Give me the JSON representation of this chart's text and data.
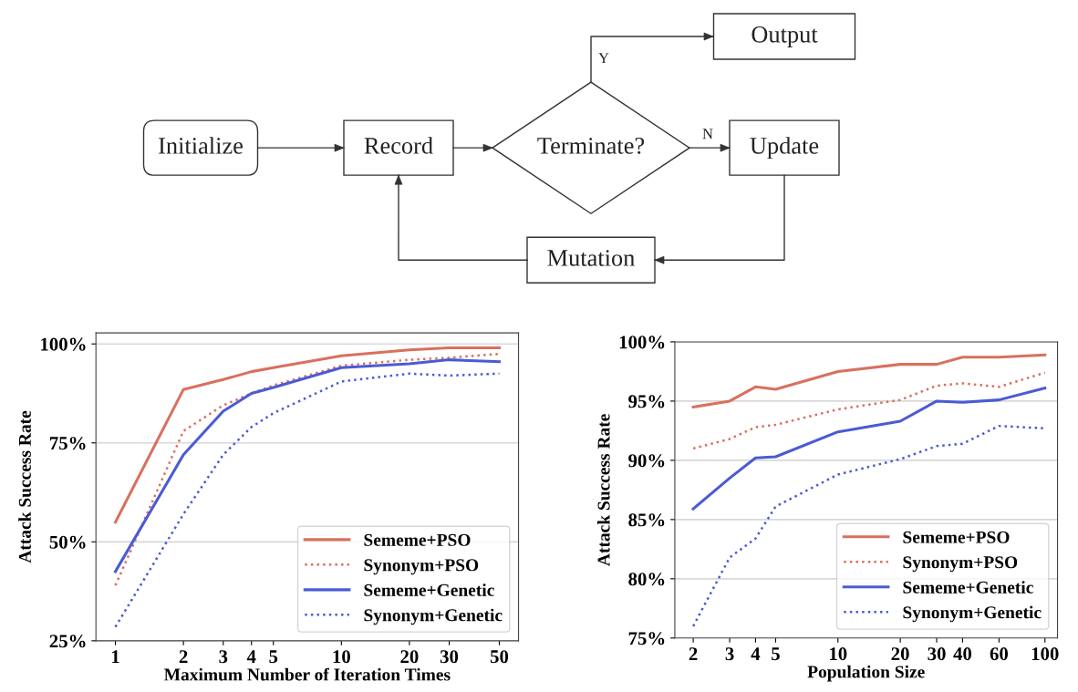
{
  "chart_data": [
    {
      "type": "other",
      "annotations": [
        "Initialize",
        "Record",
        "Terminate?",
        "Update",
        "Output",
        "Mutation",
        "Y",
        "N"
      ]
    },
    {
      "type": "line",
      "xlabel": "Maximum Number of Iteration Times",
      "ylabel": "Attack Success Rate",
      "log": "x",
      "grid": "y",
      "legend": "bottom right",
      "x": [
        1,
        2,
        3,
        4,
        5,
        10,
        20,
        30,
        50
      ],
      "xlim": [
        0.82,
        60.8
      ],
      "xticks": [
        1,
        2,
        3,
        4,
        5,
        10,
        20,
        30,
        50
      ],
      "ylim": [
        25,
        102.8
      ],
      "yticks": [
        {
          "value": 25,
          "label": "25%"
        },
        {
          "value": 50,
          "label": "50%"
        },
        {
          "value": 75,
          "label": "75%"
        },
        {
          "value": 100,
          "label": "100%"
        }
      ],
      "series": [
        {
          "name": "Sememe+PSO",
          "color": "#d9705e",
          "line_style": "solid",
          "values": [
            55,
            88.5,
            91,
            93,
            94,
            97,
            98.5,
            99,
            99
          ]
        },
        {
          "name": "Synonym+PSO",
          "color": "#d9705e",
          "line_style": "dotted",
          "values": [
            39,
            78,
            84.5,
            87.5,
            89.5,
            94.5,
            96,
            96.5,
            97.5
          ]
        },
        {
          "name": "Sememe+Genetic",
          "color": "#4a5bd4",
          "line_style": "solid",
          "values": [
            42.5,
            72,
            83,
            87.5,
            89,
            94,
            95,
            96,
            95.5
          ]
        },
        {
          "name": "Synonym+Genetic",
          "color": "#4a5bd4",
          "line_style": "dotted",
          "values": [
            28.5,
            57,
            72,
            79,
            82.5,
            90.5,
            92.5,
            92,
            92.5
          ]
        }
      ]
    },
    {
      "type": "line",
      "xlabel": "Population Size",
      "ylabel": "Attack Success Rate",
      "log": "x",
      "grid": "y",
      "legend": "bottom right",
      "x": [
        2,
        3,
        4,
        5,
        10,
        20,
        30,
        40,
        60,
        100
      ],
      "xlim": [
        1.63,
        115
      ],
      "xticks": [
        2,
        3,
        4,
        5,
        10,
        20,
        30,
        40,
        60,
        100
      ],
      "ylim": [
        75,
        100
      ],
      "yticks": [
        {
          "value": 75,
          "label": "75%"
        },
        {
          "value": 80,
          "label": "80%"
        },
        {
          "value": 85,
          "label": "85%"
        },
        {
          "value": 90,
          "label": "90%"
        },
        {
          "value": 95,
          "label": "95%"
        },
        {
          "value": 100,
          "label": "100%"
        }
      ],
      "series": [
        {
          "name": "Sememe+PSO",
          "color": "#d9705e",
          "line_style": "solid",
          "values": [
            94.5,
            95,
            96.2,
            96,
            97.5,
            98.1,
            98.1,
            98.7,
            98.7,
            98.9
          ]
        },
        {
          "name": "Synonym+PSO",
          "color": "#d9705e",
          "line_style": "dotted",
          "values": [
            91,
            91.8,
            92.8,
            93,
            94.3,
            95.1,
            96.3,
            96.5,
            96.2,
            97.4
          ]
        },
        {
          "name": "Sememe+Genetic",
          "color": "#4a5bd4",
          "line_style": "solid",
          "values": [
            85.9,
            88.5,
            90.2,
            90.3,
            92.4,
            93.3,
            95,
            94.9,
            95.1,
            96.1
          ]
        },
        {
          "name": "Synonym+Genetic",
          "color": "#4a5bd4",
          "line_style": "dotted",
          "values": [
            76,
            81.8,
            83.4,
            86.1,
            88.8,
            90.1,
            91.2,
            91.4,
            92.9,
            92.7
          ]
        }
      ]
    }
  ]
}
